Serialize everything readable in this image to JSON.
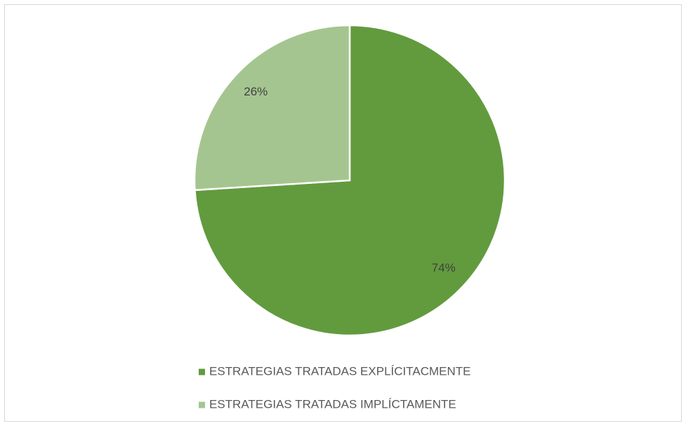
{
  "chart_data": {
    "type": "pie",
    "categories": [
      "ESTRATEGIAS TRATADAS EXPLÍCITACMENTE",
      "ESTRATEGIAS TRATADAS IMPLÍCTAMENTE"
    ],
    "values": [
      74,
      26
    ],
    "value_labels": [
      "74%",
      "26%"
    ],
    "colors": [
      "#629b3e",
      "#a5c590"
    ],
    "legend": "bottom"
  }
}
